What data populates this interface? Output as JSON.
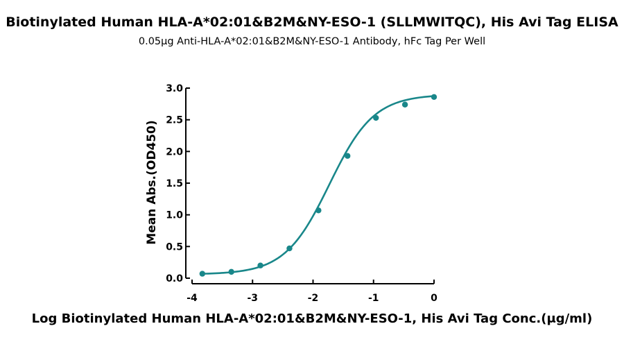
{
  "chart_data": {
    "type": "scatter",
    "title": "Biotinylated Human HLA-A*02:01&B2M&NY-ESO-1 (SLLMWITQC), His Avi Tag ELISA",
    "subtitle": "0.05μg Anti-HLA-A*02:01&B2M&NY-ESO-1 Antibody, hFc Tag Per Well",
    "xlabel": "Log Biotinylated Human HLA-A*02:01&B2M&NY-ESO-1, His Avi Tag Conc.(μg/ml)",
    "ylabel": "Mean Abs.(OD450)",
    "xlim": [
      -4,
      0
    ],
    "ylim": [
      0,
      3
    ],
    "x_ticks": [
      -4,
      -3,
      -2,
      -1,
      0
    ],
    "x_tick_labels": [
      "-4",
      "-3",
      "-2",
      "-1",
      "0"
    ],
    "y_ticks": [
      0,
      0.5,
      1,
      1.5,
      2,
      2.5,
      3
    ],
    "y_tick_labels": [
      "0.0",
      "0.5",
      "1.0",
      "1.5",
      "2.0",
      "2.5",
      "3.0"
    ],
    "series": [
      {
        "x": [
          -3.83,
          -3.35,
          -2.87,
          -2.39,
          -1.91,
          -1.43,
          -0.96,
          -0.48,
          0
        ],
        "y": [
          0.07,
          0.1,
          0.2,
          0.47,
          1.07,
          1.93,
          2.53,
          2.74,
          2.86
        ],
        "fit": "4PL sigmoid",
        "color": "#19878a"
      }
    ],
    "grid": false,
    "legend": "none"
  }
}
